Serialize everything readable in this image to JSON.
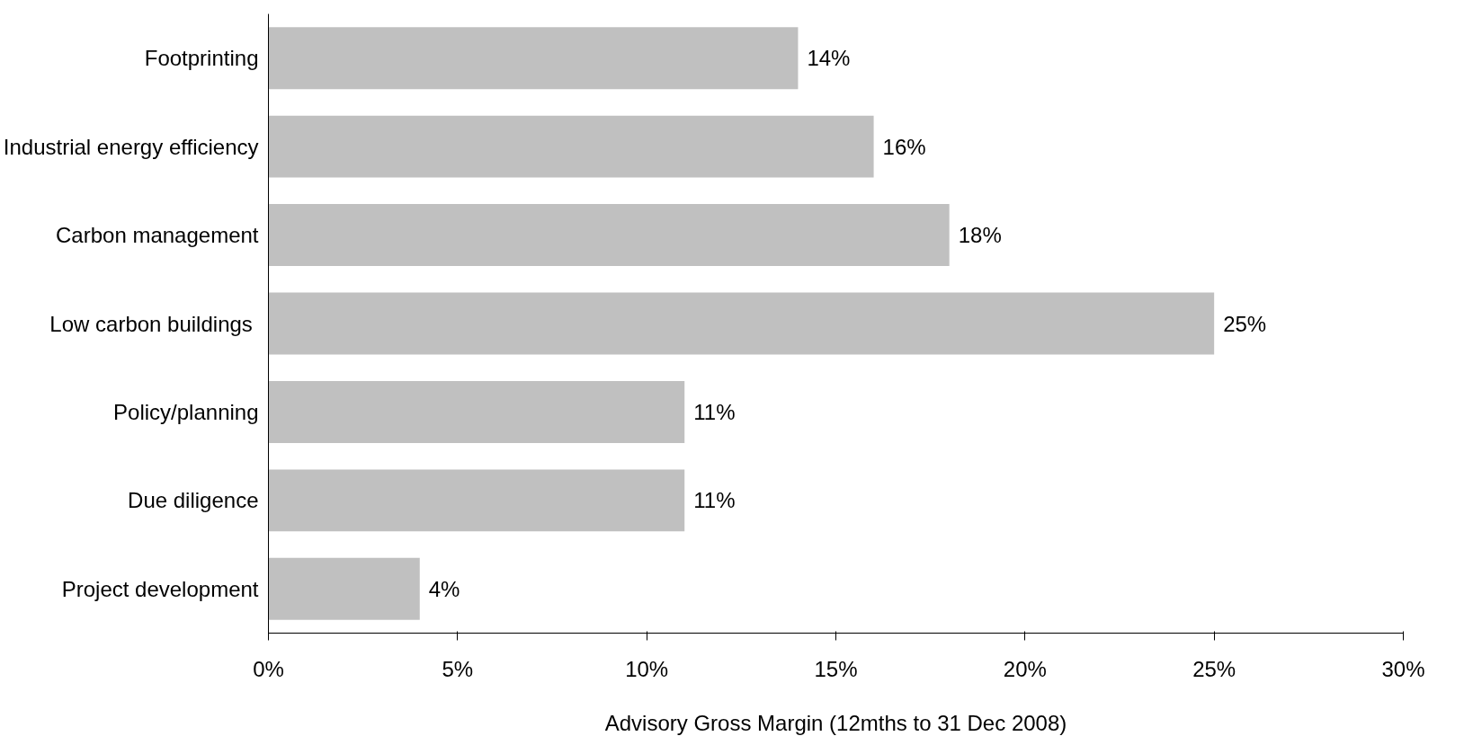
{
  "chart_data": {
    "type": "bar",
    "orientation": "horizontal",
    "xlabel": "Advisory Gross Margin (12mths to 31 Dec 2008)",
    "categories": [
      "Footprinting",
      "Industrial energy efficiency",
      "Carbon management",
      "Low  carbon buildings",
      "Policy/planning",
      "Due diligence",
      "Project development"
    ],
    "values": [
      14,
      16,
      18,
      25,
      11,
      11,
      4
    ],
    "color": "#c0c0c0",
    "value_labels": [
      "14%",
      "16%",
      "18%",
      "25%",
      "11%",
      "11%",
      "4%"
    ],
    "xlim": [
      0,
      30
    ],
    "xticks": [
      {
        "value": 0,
        "label": "0%"
      },
      {
        "value": 5,
        "label": "5%"
      },
      {
        "value": 10,
        "label": "10%"
      },
      {
        "value": 15,
        "label": "15%"
      },
      {
        "value": 20,
        "label": "20%"
      },
      {
        "value": 25,
        "label": "25%"
      },
      {
        "value": 30,
        "label": "30%"
      }
    ],
    "grid": false
  }
}
